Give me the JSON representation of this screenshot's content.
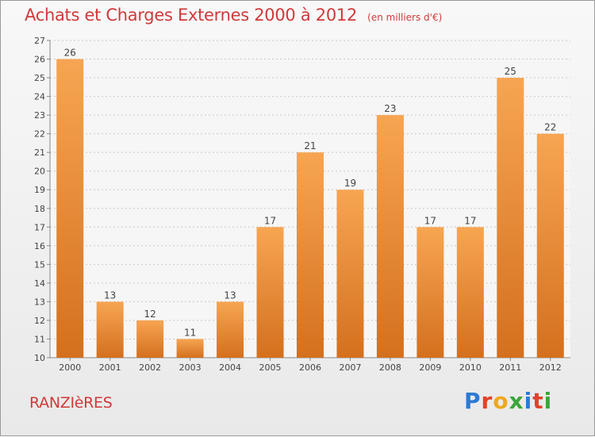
{
  "header": {
    "title": "Achats et Charges Externes 2000 à 2012",
    "subtitle": "(en milliers d'€)"
  },
  "footer": {
    "town": "RANZIèRES",
    "brand": "Proxiti"
  },
  "colors": {
    "title": "#d03a3a",
    "bar_light": "#f7a552",
    "bar_dark": "#d4701e",
    "grid": "#c8c8c8"
  },
  "chart_data": {
    "type": "bar",
    "title": "Achats et Charges Externes 2000 à 2012",
    "subtitle": "(en milliers d'€)",
    "categories": [
      "2000",
      "2001",
      "2002",
      "2003",
      "2004",
      "2005",
      "2006",
      "2007",
      "2008",
      "2009",
      "2010",
      "2011",
      "2012"
    ],
    "values": [
      26,
      13,
      12,
      11,
      13,
      17,
      21,
      19,
      23,
      17,
      17,
      25,
      22
    ],
    "value_labels": [
      "26",
      "13",
      "12",
      "11",
      "13",
      "17",
      "21",
      "19",
      "23",
      "17",
      "17",
      "25",
      "22"
    ],
    "y_ticks": [
      "10",
      "11",
      "12",
      "13",
      "14",
      "15",
      "16",
      "17",
      "18",
      "19",
      "20",
      "21",
      "22",
      "23",
      "24",
      "25",
      "26",
      "27"
    ],
    "ylim": [
      10,
      27
    ],
    "grid": true,
    "legend": "none"
  }
}
